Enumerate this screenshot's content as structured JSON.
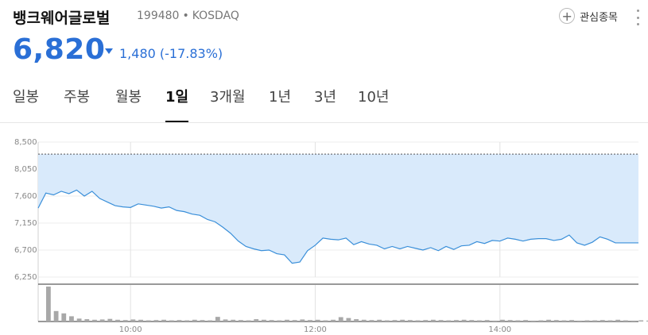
{
  "header": {
    "stock_name": "뱅크웨어글로벌",
    "stock_code": "199480",
    "separator": "•",
    "market": "KOSDAQ",
    "watch_label": "관심종목",
    "watch_icon": "plus-icon",
    "more_icon": "more-vertical-icon"
  },
  "price": {
    "current": "6,820",
    "change": "1,480",
    "change_percent": "(-17.83%)",
    "direction": "down",
    "color": "#2a6fd6"
  },
  "tabs": [
    {
      "label": "일봉",
      "active": false
    },
    {
      "label": "주봉",
      "active": false
    },
    {
      "label": "월봉",
      "active": false
    },
    {
      "label": "1일",
      "active": true
    },
    {
      "label": "3개월",
      "active": false
    },
    {
      "label": "1년",
      "active": false
    },
    {
      "label": "3년",
      "active": false
    },
    {
      "label": "10년",
      "active": false
    }
  ],
  "chart_data": {
    "type": "area",
    "y_ticks": [
      "8,500",
      "8,050",
      "7,600",
      "7,150",
      "6,700",
      "6,250"
    ],
    "y_tick_values": [
      8500,
      8050,
      7600,
      7150,
      6700,
      6250
    ],
    "ylim": [
      6250,
      8500
    ],
    "x_ticks": [
      "10:00",
      "12:00",
      "14:00"
    ],
    "x_tick_values": [
      "10:00",
      "12:00",
      "14:00"
    ],
    "xlim": [
      "09:00",
      "15:30"
    ],
    "reference_line": 8300,
    "line_color": "#3a8fd9",
    "fill_color": "#d9eafb",
    "volume_color": "#a8a8a8",
    "grid": true,
    "series": [
      {
        "x": [
          "09:00",
          "09:05",
          "09:10",
          "09:15",
          "09:20",
          "09:25",
          "09:30",
          "09:35",
          "09:40",
          "09:45",
          "09:50",
          "09:55",
          "10:00",
          "10:05",
          "10:10",
          "10:15",
          "10:20",
          "10:25",
          "10:30",
          "10:35",
          "10:40",
          "10:45",
          "10:50",
          "10:55",
          "11:00",
          "11:05",
          "11:10",
          "11:15",
          "11:20",
          "11:25",
          "11:30",
          "11:35",
          "11:40",
          "11:45",
          "11:50",
          "11:55",
          "12:00",
          "12:05",
          "12:10",
          "12:15",
          "12:20",
          "12:25",
          "12:30",
          "12:35",
          "12:40",
          "12:45",
          "12:50",
          "12:55",
          "13:00",
          "13:05",
          "13:10",
          "13:15",
          "13:20",
          "13:25",
          "13:30",
          "13:35",
          "13:40",
          "13:45",
          "13:50",
          "13:55",
          "14:00",
          "14:05",
          "14:10",
          "14:15",
          "14:20",
          "14:25",
          "14:30",
          "14:35",
          "14:40",
          "14:45",
          "14:50",
          "14:55",
          "15:00",
          "15:05",
          "15:10",
          "15:15",
          "15:20",
          "15:25",
          "15:30"
        ],
        "values": [
          7400,
          7650,
          7620,
          7680,
          7640,
          7700,
          7600,
          7680,
          7560,
          7500,
          7440,
          7420,
          7410,
          7470,
          7450,
          7430,
          7400,
          7420,
          7360,
          7340,
          7300,
          7280,
          7210,
          7170,
          7080,
          6980,
          6850,
          6760,
          6720,
          6690,
          6700,
          6640,
          6620,
          6480,
          6500,
          6690,
          6780,
          6900,
          6880,
          6870,
          6900,
          6790,
          6840,
          6800,
          6780,
          6720,
          6760,
          6720,
          6760,
          6730,
          6700,
          6740,
          6690,
          6760,
          6710,
          6770,
          6780,
          6840,
          6810,
          6860,
          6850,
          6900,
          6880,
          6850,
          6880,
          6890,
          6890,
          6860,
          6880,
          6950,
          6820,
          6780,
          6830,
          6920,
          6880,
          6820,
          6820,
          6820,
          6820
        ]
      }
    ],
    "volume": [
      120,
      36,
      28,
      18,
      10,
      8,
      6,
      7,
      9,
      6,
      5,
      7,
      6,
      4,
      5,
      6,
      4,
      5,
      4,
      6,
      5,
      4,
      16,
      7,
      6,
      5,
      4,
      8,
      6,
      5,
      4,
      6,
      5,
      7,
      5,
      6,
      4,
      6,
      15,
      12,
      8,
      6,
      5,
      6,
      4,
      5,
      6,
      5,
      4,
      5,
      6,
      5,
      4,
      5,
      6,
      5,
      4,
      5,
      3,
      6,
      5,
      4,
      5,
      3,
      4,
      6,
      5,
      4,
      5,
      3,
      4,
      4,
      5,
      4,
      6,
      4,
      3,
      4,
      3
    ]
  }
}
